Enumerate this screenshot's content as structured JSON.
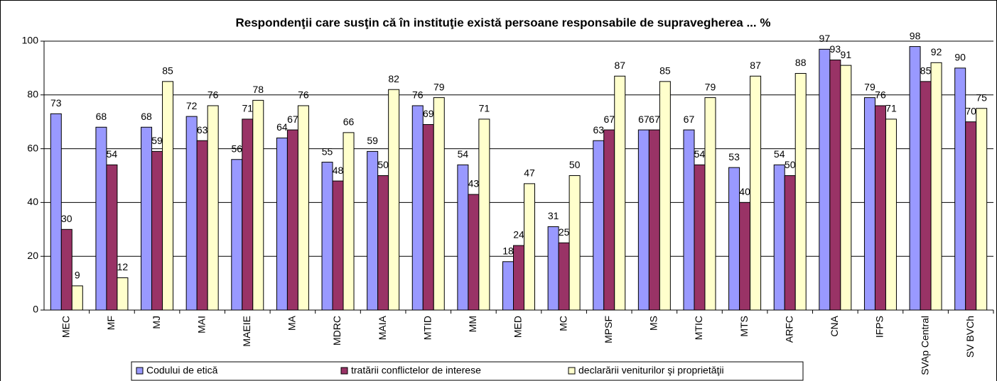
{
  "chart_data": {
    "type": "bar",
    "title": "Respondenţii care susţin că în instituţie există persoane responsabile de supravegherea ... %",
    "categories": [
      "MEC",
      "MF",
      "MJ",
      "MAI",
      "MAEIE",
      "MA",
      "MDRC",
      "MAIA",
      "MTID",
      "MM",
      "MED",
      "MC",
      "MPSF",
      "MS",
      "MTIC",
      "MTS",
      "ARFC",
      "CNA",
      "IFPS",
      "SVAp Central",
      "SV BVCh"
    ],
    "series": [
      {
        "name": "Codului de etică",
        "color": "#9999ff",
        "values": [
          73,
          68,
          68,
          72,
          56,
          64,
          55,
          59,
          76,
          54,
          18,
          31,
          63,
          67,
          67,
          53,
          54,
          97,
          79,
          98,
          90
        ]
      },
      {
        "name": "tratării conflictelor de interese",
        "color": "#993366",
        "values": [
          30,
          54,
          59,
          63,
          71,
          67,
          48,
          50,
          69,
          43,
          24,
          25,
          67,
          67,
          54,
          40,
          50,
          93,
          76,
          85,
          70
        ]
      },
      {
        "name": "declarării veniturilor şi proprietăţii",
        "color": "#ffffcc",
        "values": [
          9,
          12,
          85,
          76,
          78,
          76,
          66,
          82,
          79,
          71,
          47,
          50,
          87,
          85,
          79,
          87,
          88,
          91,
          71,
          92,
          75
        ]
      }
    ],
    "ylim": [
      0,
      100
    ],
    "yticks": [
      0,
      20,
      40,
      60,
      80,
      100
    ],
    "grid": true,
    "legend": "bottom"
  }
}
